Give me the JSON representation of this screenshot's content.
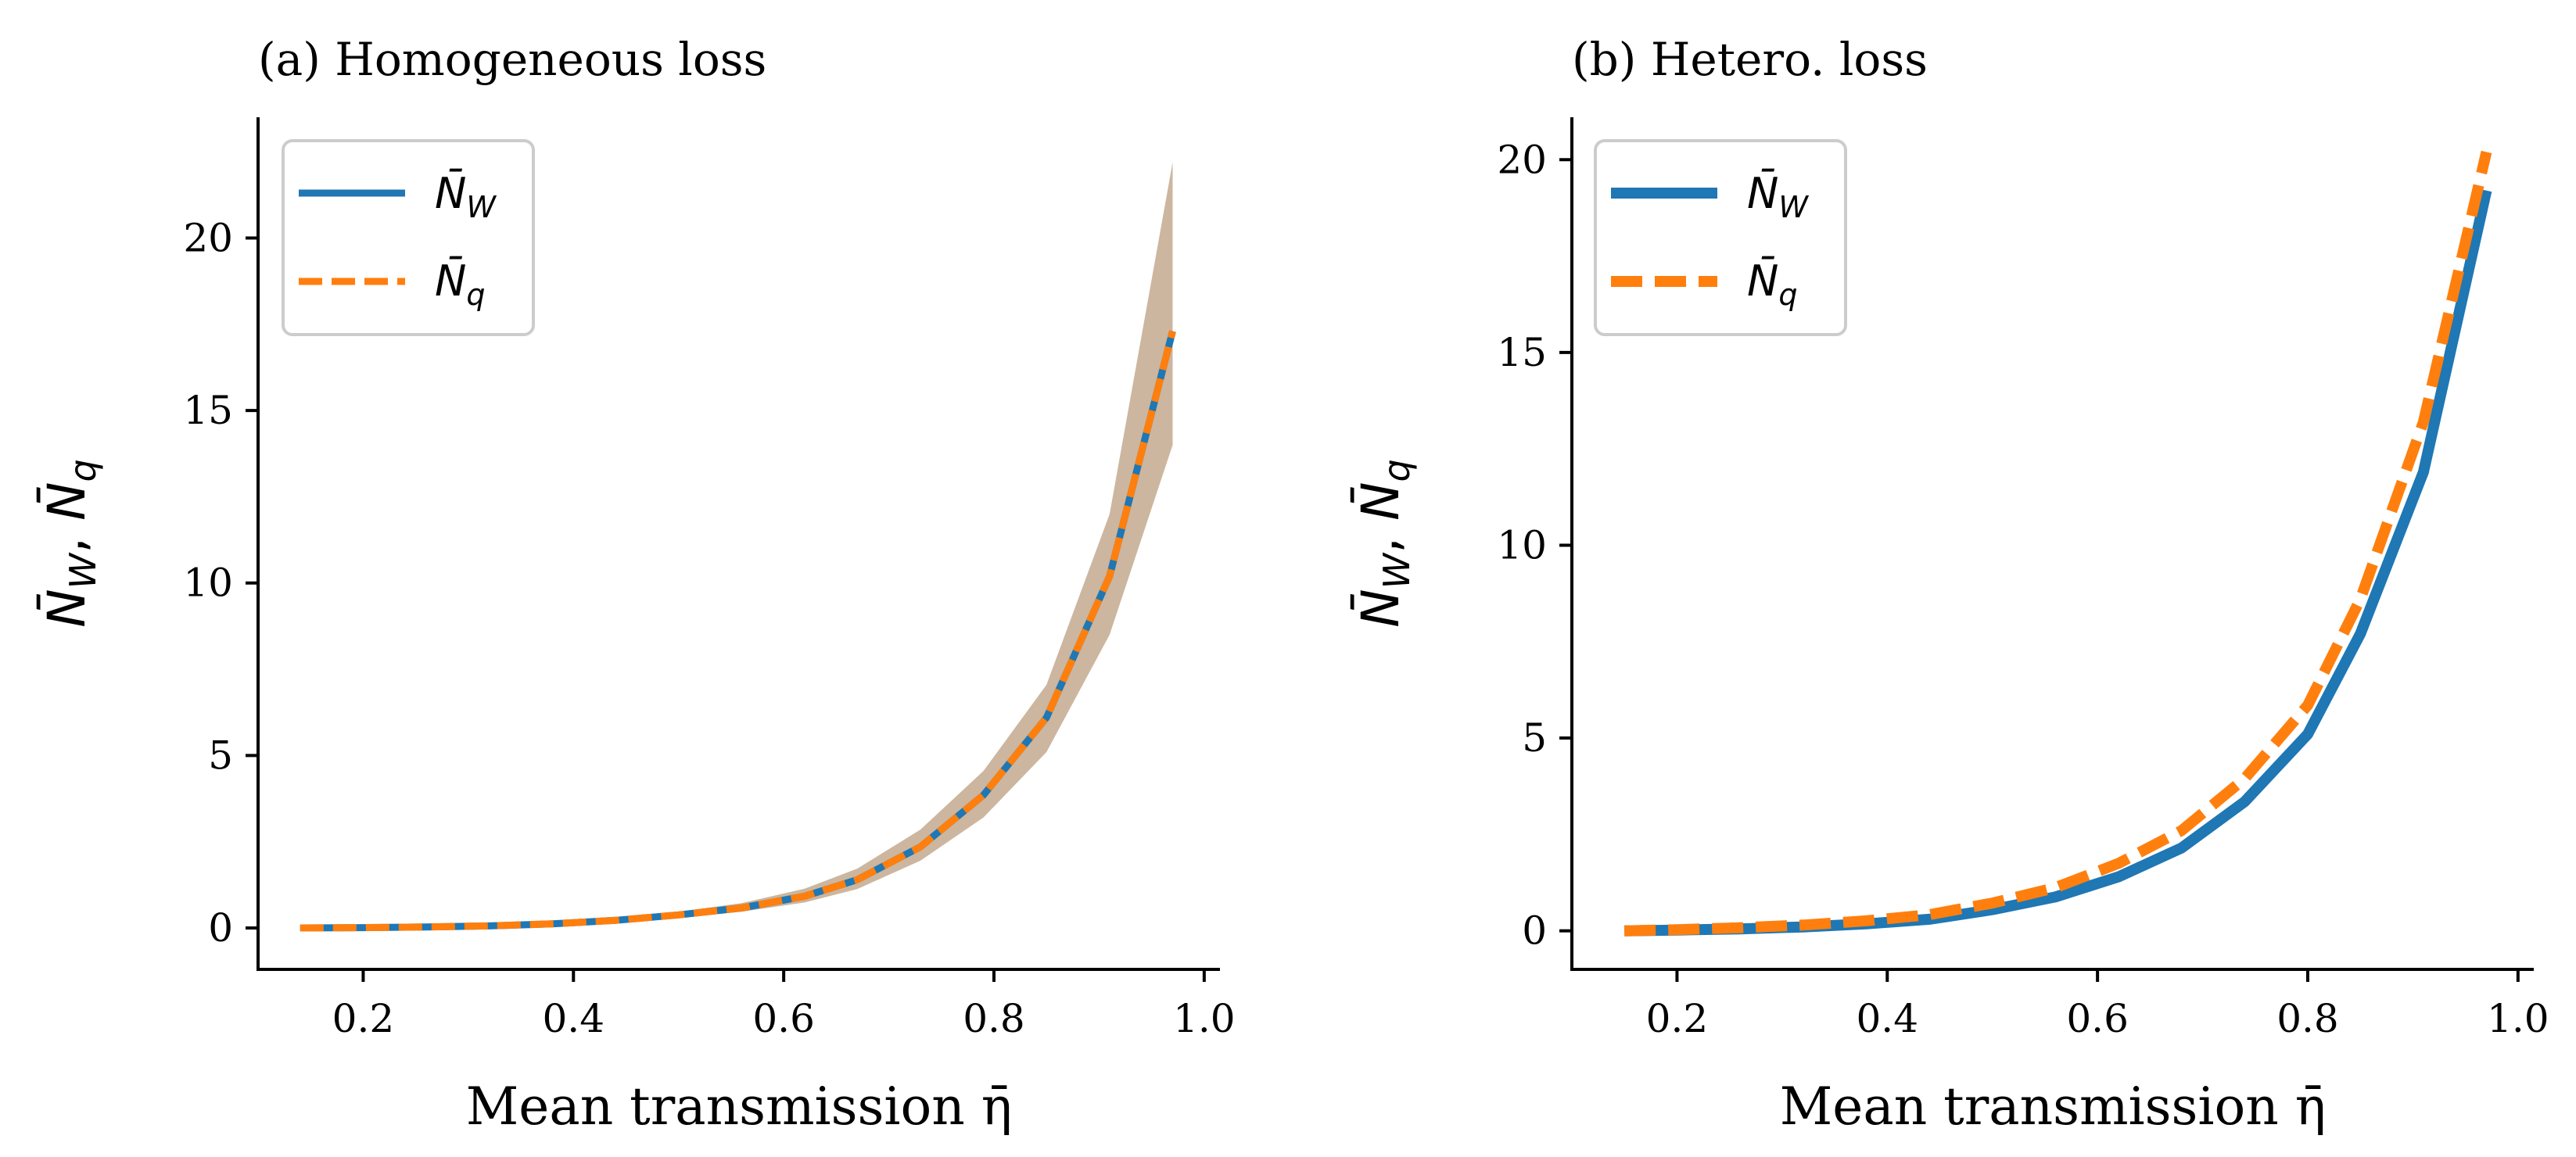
{
  "colors": {
    "nw": "#1f77b4",
    "nq": "#ff7f0e",
    "band": "#c9b29a",
    "axis": "#000000",
    "legend_border": "#cccccc"
  },
  "chart_data": [
    {
      "type": "line",
      "title": "(a) Homogeneous loss",
      "xlabel": "Mean transmission η̄",
      "ylabel": {
        "n1": "N̄",
        "s1": "W",
        "sep": ", ",
        "n2": "N̄",
        "s2": "q"
      },
      "xlim": [
        0.1,
        1.015
      ],
      "ylim": [
        -1.2,
        23.5
      ],
      "xticks": [
        0.2,
        0.4,
        0.6,
        0.8,
        1.0
      ],
      "xtick_labels": [
        "0.2",
        "0.4",
        "0.6",
        "0.8",
        "1.0"
      ],
      "yticks": [
        0,
        5,
        10,
        15,
        20
      ],
      "ytick_labels": [
        "0",
        "5",
        "10",
        "15",
        "20"
      ],
      "legend": [
        {
          "n": "N̄",
          "s": "W",
          "style": "solid"
        },
        {
          "n": "N̄",
          "s": "q",
          "style": "dashed"
        }
      ],
      "legend_position": "upper-left",
      "series": [
        {
          "name": "N̄W",
          "x": [
            0.14,
            0.2,
            0.26,
            0.32,
            0.38,
            0.44,
            0.5,
            0.56,
            0.62,
            0.67,
            0.73,
            0.79,
            0.85,
            0.91,
            0.97
          ],
          "values": [
            0.0,
            0.01,
            0.03,
            0.06,
            0.12,
            0.22,
            0.38,
            0.58,
            0.92,
            1.4,
            2.35,
            3.85,
            6.1,
            10.2,
            17.3
          ]
        },
        {
          "name": "N̄q",
          "x": [
            0.14,
            0.2,
            0.26,
            0.32,
            0.38,
            0.44,
            0.5,
            0.56,
            0.62,
            0.67,
            0.73,
            0.79,
            0.85,
            0.91,
            0.97
          ],
          "values": [
            0.0,
            0.01,
            0.03,
            0.06,
            0.12,
            0.22,
            0.38,
            0.58,
            0.92,
            1.4,
            2.35,
            3.85,
            6.1,
            10.2,
            17.3
          ]
        }
      ],
      "band": {
        "x": [
          0.14,
          0.2,
          0.26,
          0.32,
          0.38,
          0.44,
          0.5,
          0.56,
          0.62,
          0.67,
          0.73,
          0.79,
          0.85,
          0.91,
          0.97
        ],
        "lower": [
          0.0,
          0.0,
          0.01,
          0.03,
          0.08,
          0.17,
          0.3,
          0.47,
          0.74,
          1.13,
          1.95,
          3.2,
          5.1,
          8.5,
          14.0
        ],
        "upper": [
          0.02,
          0.03,
          0.06,
          0.1,
          0.18,
          0.28,
          0.47,
          0.72,
          1.14,
          1.72,
          2.85,
          4.55,
          7.05,
          12.0,
          22.2
        ]
      }
    },
    {
      "type": "line",
      "title": "(b) Hetero. loss",
      "xlabel": "Mean transmission η̄",
      "ylabel": {
        "n1": "N̄",
        "s1": "W",
        "sep": ", ",
        "n2": "N̄",
        "s2": "q"
      },
      "xlim": [
        0.1,
        1.015
      ],
      "ylim": [
        -1.0,
        21.1
      ],
      "xticks": [
        0.2,
        0.4,
        0.6,
        0.8,
        1.0
      ],
      "xtick_labels": [
        "0.2",
        "0.4",
        "0.6",
        "0.8",
        "1.0"
      ],
      "yticks": [
        0,
        5,
        10,
        15,
        20
      ],
      "ytick_labels": [
        "0",
        "5",
        "10",
        "15",
        "20"
      ],
      "legend": [
        {
          "n": "N̄",
          "s": "W",
          "style": "solid"
        },
        {
          "n": "N̄",
          "s": "q",
          "style": "dashed"
        }
      ],
      "legend_position": "upper-left",
      "series": [
        {
          "name": "N̄W",
          "x": [
            0.15,
            0.2,
            0.26,
            0.32,
            0.38,
            0.44,
            0.5,
            0.56,
            0.62,
            0.68,
            0.74,
            0.8,
            0.85,
            0.91,
            0.97
          ],
          "values": [
            0.0,
            0.02,
            0.05,
            0.1,
            0.18,
            0.3,
            0.55,
            0.88,
            1.4,
            2.15,
            3.35,
            5.1,
            7.7,
            11.9,
            19.2
          ]
        },
        {
          "name": "N̄q",
          "x": [
            0.15,
            0.2,
            0.26,
            0.32,
            0.38,
            0.44,
            0.5,
            0.56,
            0.62,
            0.68,
            0.74,
            0.8,
            0.85,
            0.91,
            0.97
          ],
          "values": [
            0.0,
            0.03,
            0.08,
            0.15,
            0.26,
            0.42,
            0.72,
            1.12,
            1.75,
            2.6,
            3.95,
            5.85,
            8.6,
            13.2,
            20.2
          ]
        }
      ]
    }
  ]
}
